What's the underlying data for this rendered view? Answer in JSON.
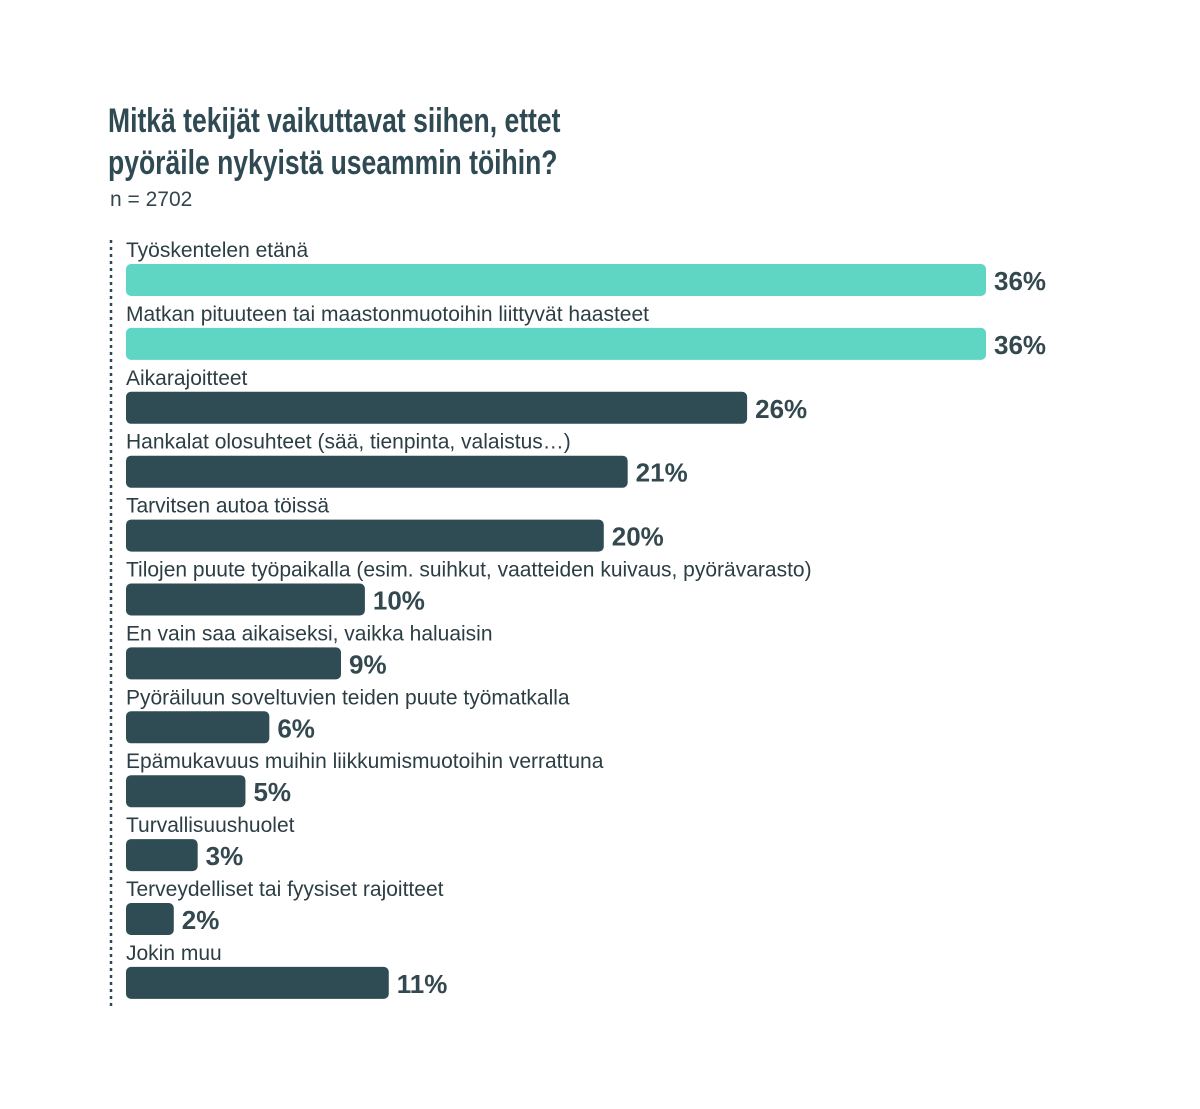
{
  "title_line1": "Mitkä tekijät vaikuttavat siihen, ettet",
  "title_line2": "pyöräile nykyistä useammin töihin?",
  "subtitle": "n = 2702",
  "colors": {
    "highlight": "#5fd6c4",
    "default": "#2f4b53",
    "text": "#2c3e44"
  },
  "chart_data": {
    "type": "bar",
    "orientation": "horizontal",
    "title": "Mitkä tekijät vaikuttavat siihen, ettet pyöräile nykyistä useammin töihin?",
    "subtitle": "n = 2702",
    "unit": "%",
    "categories": [
      "Työskentelen etänä",
      "Matkan pituuteen tai maastonmuotoihin liittyvät haasteet",
      "Aikarajoitteet",
      "Hankalat olosuhteet (sää, tienpinta, valaistus…)",
      "Tarvitsen autoa töissä",
      "Tilojen puute työpaikalla (esim. suihkut, vaatteiden kuivaus, pyörävarasto)",
      "En vain saa aikaiseksi, vaikka haluaisin",
      "Pyöräiluun soveltuvien teiden puute työmatkalla",
      "Epämukavuus muihin liikkumismuotoihin verrattuna",
      "Turvallisuushuolet",
      "Terveydelliset tai fyysiset rajoitteet",
      "Jokin muu"
    ],
    "values": [
      36,
      36,
      26,
      21,
      20,
      10,
      9,
      6,
      5,
      3,
      2,
      11
    ],
    "value_labels": [
      "36%",
      "36%",
      "26%",
      "21%",
      "20%",
      "10%",
      "9%",
      "6%",
      "5%",
      "3%",
      "2%",
      "11%"
    ],
    "highlighted": [
      true,
      true,
      false,
      false,
      false,
      false,
      false,
      false,
      false,
      false,
      false,
      false
    ],
    "xlim": [
      0,
      36
    ],
    "grid": false,
    "legend": "none"
  }
}
